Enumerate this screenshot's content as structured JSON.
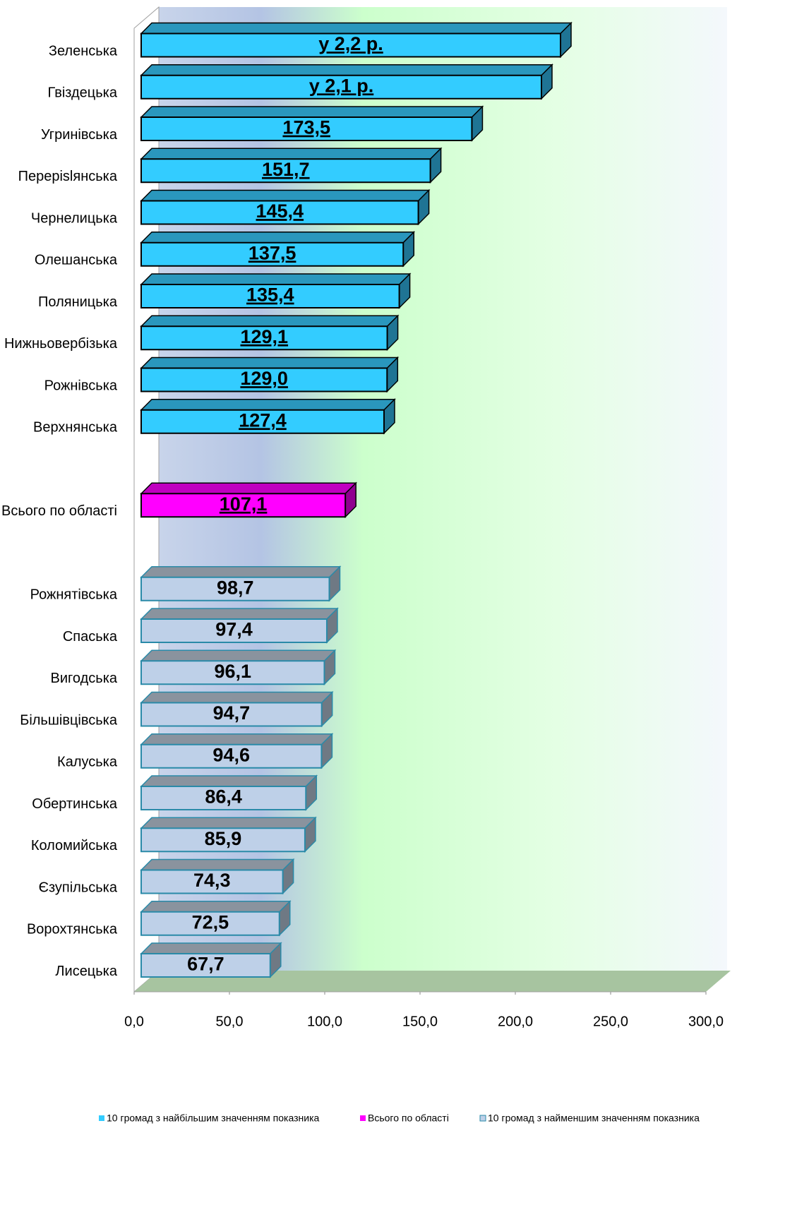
{
  "chart_data": {
    "type": "bar3d_horizontal",
    "categories": [
      "Зеленська",
      "Гвіздецька",
      "Угринівська",
      "Перерislянська",
      "Чернелицька",
      "Олешанська",
      "Поляницька",
      "Нижньовербізька",
      "Рожнівська",
      "Верхнянська",
      null,
      "Всього по області",
      null,
      "Рожнятівська",
      "Спаська",
      "Вигодська",
      "Більшівцівська",
      "Калуська",
      "Обертинська",
      "Коломийська",
      "Єзупільська",
      "Ворохтянська",
      "Лисецька"
    ],
    "series": [
      {
        "name": "10 громад з найбільшим значенням показника",
        "color": "#33ccff",
        "top_color": "#2a97bd",
        "side_color": "#1f7494",
        "stroke": "#000000",
        "underline": true,
        "values": [
          220,
          210,
          173.5,
          151.7,
          145.4,
          137.5,
          135.4,
          129.1,
          129.0,
          127.4,
          null,
          null,
          null,
          null,
          null,
          null,
          null,
          null,
          null,
          null,
          null,
          null,
          null
        ],
        "value_labels": [
          "у 2,2 р.",
          "у 2,1 р.",
          "173,5",
          "151,7",
          "145,4",
          "137,5",
          "135,4",
          "129,1",
          "129,0",
          "127,4",
          null,
          null,
          null,
          null,
          null,
          null,
          null,
          null,
          null,
          null,
          null,
          null,
          null
        ]
      },
      {
        "name": "Всього по області",
        "color": "#ff00ff",
        "top_color": "#c000c0",
        "side_color": "#900090",
        "stroke": "#000000",
        "underline": true,
        "values": [
          null,
          null,
          null,
          null,
          null,
          null,
          null,
          null,
          null,
          null,
          null,
          107.1,
          null,
          null,
          null,
          null,
          null,
          null,
          null,
          null,
          null,
          null,
          null
        ],
        "value_labels": [
          null,
          null,
          null,
          null,
          null,
          null,
          null,
          null,
          null,
          null,
          null,
          "107,1",
          null,
          null,
          null,
          null,
          null,
          null,
          null,
          null,
          null,
          null,
          null
        ]
      },
      {
        "name": "10 громад з найменшим значенням показника",
        "color": "#bed0e8",
        "top_color": "#8a939e",
        "side_color": "#6f7984",
        "stroke": "#2a8aa8",
        "underline": false,
        "values": [
          null,
          null,
          null,
          null,
          null,
          null,
          null,
          null,
          null,
          null,
          null,
          null,
          null,
          98.7,
          97.4,
          96.1,
          94.7,
          94.6,
          86.4,
          85.9,
          74.3,
          72.5,
          67.7
        ],
        "value_labels": [
          null,
          null,
          null,
          null,
          null,
          null,
          null,
          null,
          null,
          null,
          null,
          null,
          null,
          "98,7",
          "97,4",
          "96,1",
          "94,7",
          "94,6",
          "86,4",
          "85,9",
          "74,3",
          "72,5",
          "67,7"
        ]
      }
    ],
    "xlim": [
      0,
      300
    ],
    "xticks": [
      {
        "value": 0,
        "label": "0,0"
      },
      {
        "value": 50,
        "label": "50,0"
      },
      {
        "value": 100,
        "label": "100,0"
      },
      {
        "value": 150,
        "label": "150,0"
      },
      {
        "value": 200,
        "label": "200,0"
      },
      {
        "value": 250,
        "label": "250,0"
      },
      {
        "value": 300,
        "label": "300,0"
      }
    ],
    "legend": "bottom",
    "grid": false
  }
}
